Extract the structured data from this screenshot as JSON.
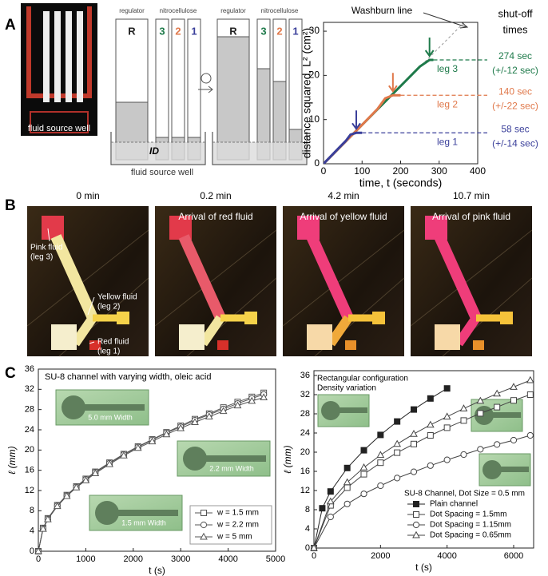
{
  "panel_labels": [
    "A",
    "B",
    "C"
  ],
  "panel_a": {
    "photo_label": "fluid source well",
    "schematic_1": {
      "regulator": "regulator",
      "nitrocellulose": "nitrocellulose",
      "legs": [
        "R",
        "3",
        "2",
        "1"
      ],
      "id": "ID",
      "well": "fluid source well"
    },
    "schematic_2": {
      "regulator": "regulator",
      "nitrocellulose": "nitrocellulose",
      "legs": [
        "R",
        "3",
        "2",
        "1"
      ]
    }
  },
  "panel_b": {
    "frames": [
      {
        "time": "0 min"
      },
      {
        "time": "0.2 min",
        "caption": "Arrival of red fluid"
      },
      {
        "time": "4.2 min",
        "caption": "Arrival of yellow fluid"
      },
      {
        "time": "10.7 min",
        "caption": "Arrival of pink fluid"
      }
    ],
    "labels": [
      {
        "lines": [
          "Pink fluid",
          "(leg 3)"
        ]
      },
      {
        "lines": [
          "Yellow fluid",
          "(leg 2)"
        ]
      },
      {
        "lines": [
          "Red fluid",
          "(leg 1)"
        ]
      }
    ]
  },
  "chart_data": [
    {
      "type": "line",
      "x_label": "time, t (seconds)",
      "y_label": "distance squared, L² (cm²)",
      "xlim": [
        0,
        400
      ],
      "xticks": [
        0,
        100,
        200,
        300,
        400
      ],
      "ylim": [
        0,
        32
      ],
      "yticks": [
        0,
        10,
        20,
        30
      ],
      "shutoff_title": [
        "shut-off",
        "times"
      ],
      "series": [
        {
          "name": "Washburn line",
          "color": "#9a9a9a",
          "dashed": true,
          "x": [
            0,
            365
          ],
          "values": [
            0,
            32
          ]
        },
        {
          "name": "leg 3",
          "color": "#1e7a4a",
          "x": [
            0,
            100,
            200,
            250,
            275,
            285
          ],
          "values": [
            0,
            8.8,
            17.6,
            22,
            23.5,
            23.5
          ],
          "shutoff_time": "274 sec",
          "shutoff_error": "(+/-12 sec)"
        },
        {
          "name": "leg 2",
          "color": "#e0784a",
          "x": [
            0,
            50,
            100,
            140,
            160,
            180,
            200
          ],
          "values": [
            0,
            4.4,
            8.8,
            12.4,
            14.8,
            15.5,
            15.5
          ],
          "shutoff_time": "140 sec",
          "shutoff_error": "(+/-22 sec)"
        },
        {
          "name": "leg 1",
          "color": "#3a3f9a",
          "x": [
            0,
            20,
            40,
            58,
            70,
            85,
            100
          ],
          "values": [
            0,
            1.8,
            3.6,
            5.2,
            6.6,
            7,
            7
          ],
          "shutoff_time": "58 sec",
          "shutoff_error": "(+/-14 sec)"
        }
      ]
    },
    {
      "type": "line",
      "title": "SU-8 channel with varying width, oleic acid",
      "x_label": "t (s)",
      "y_label": "ℓ (mm)",
      "xlim": [
        0,
        5000
      ],
      "xticks": [
        0,
        1000,
        2000,
        3000,
        4000,
        5000
      ],
      "ylim": [
        0,
        36
      ],
      "yticks": [
        0,
        4,
        8,
        12,
        16,
        20,
        24,
        28,
        32,
        36
      ],
      "legend": "lower right",
      "insets": [
        "5.0 mm Width",
        "2.2 mm Width",
        "1.5 mm Width"
      ],
      "series": [
        {
          "name": "w = 1.5 mm",
          "color": "#555555",
          "marker": "square",
          "filled": false,
          "x": [
            0,
            100,
            200,
            400,
            600,
            800,
            1000,
            1200,
            1500,
            1800,
            2100,
            2400,
            2700,
            3000,
            3300,
            3600,
            3900,
            4200,
            4500,
            4750
          ],
          "values": [
            0,
            4.6,
            6.5,
            9.1,
            11.1,
            12.8,
            14.3,
            15.7,
            17.5,
            19.2,
            20.7,
            22.1,
            23.5,
            24.8,
            26.1,
            27.2,
            28.4,
            29.5,
            30.5,
            31.3
          ]
        },
        {
          "name": "w = 2.2 mm",
          "color": "#555555",
          "marker": "circle",
          "filled": false,
          "x": [
            0,
            100,
            200,
            400,
            600,
            800,
            1000,
            1200,
            1500,
            1800,
            2100,
            2400,
            2700,
            3000,
            3300,
            3600,
            3900,
            4200,
            4500,
            4750
          ],
          "values": [
            0,
            4.5,
            6.4,
            9.0,
            11.0,
            12.7,
            14.2,
            15.6,
            17.4,
            19.1,
            20.6,
            22.0,
            23.4,
            24.6,
            25.9,
            27.0,
            28.1,
            29.2,
            30.2,
            31.0
          ]
        },
        {
          "name": "w = 5 mm",
          "color": "#555555",
          "marker": "triangle",
          "filled": false,
          "x": [
            0,
            100,
            200,
            400,
            600,
            800,
            1000,
            1200,
            1500,
            1800,
            2100,
            2400,
            2700,
            3000,
            3300,
            3600,
            3900,
            4200,
            4500,
            4750
          ],
          "values": [
            0,
            4.4,
            6.3,
            8.9,
            10.9,
            12.6,
            14.0,
            15.4,
            17.2,
            18.9,
            20.4,
            21.7,
            23.1,
            24.3,
            25.5,
            26.6,
            27.7,
            28.8,
            29.7,
            30.4
          ]
        }
      ]
    },
    {
      "type": "line",
      "x_label": "t (s)",
      "y_label": "ℓ (mm)",
      "xlim": [
        0,
        6600
      ],
      "xticks": [
        0,
        2000,
        4000,
        6000
      ],
      "ylim": [
        0,
        37
      ],
      "yticks": [
        0,
        4,
        8,
        12,
        16,
        20,
        24,
        28,
        32,
        36
      ],
      "legend": "lower right",
      "annotations": [
        "Rectangular configuration",
        "Density variation"
      ],
      "legend_title": "SU-8 Channel, Dot Size = 0.5 mm",
      "series": [
        {
          "name": "Plain channel",
          "color": "#222222",
          "marker": "square",
          "filled": true,
          "x": [
            0,
            250,
            500,
            1000,
            1500,
            2000,
            2500,
            3000,
            3500,
            4000
          ],
          "values": [
            0,
            8.3,
            11.8,
            16.7,
            20.4,
            23.6,
            26.4,
            28.9,
            31.2,
            33.3
          ]
        },
        {
          "name": "Dot Spacing = 1.5mm",
          "color": "#444444",
          "marker": "square",
          "filled": false,
          "x": [
            0,
            500,
            1000,
            1500,
            2000,
            2500,
            3000,
            3500,
            4000,
            4500,
            5000,
            5500,
            6000,
            6500
          ],
          "values": [
            0,
            8.9,
            12.6,
            15.4,
            17.8,
            19.9,
            21.7,
            23.5,
            25.1,
            26.6,
            28.1,
            29.4,
            30.8,
            32.0
          ]
        },
        {
          "name": "Dot Spacing = 1.15mm",
          "color": "#444444",
          "marker": "circle",
          "filled": false,
          "x": [
            0,
            500,
            1000,
            1500,
            2000,
            2500,
            3000,
            3500,
            4000,
            4500,
            5000,
            5500,
            6000,
            6500
          ],
          "values": [
            0,
            6.5,
            9.2,
            11.3,
            13.0,
            14.6,
            15.9,
            17.2,
            18.4,
            19.5,
            20.6,
            21.6,
            22.5,
            23.5
          ]
        },
        {
          "name": "Dot Spacing = 0.65mm",
          "color": "#444444",
          "marker": "triangle",
          "filled": false,
          "x": [
            0,
            500,
            1000,
            1500,
            2000,
            2500,
            3000,
            3500,
            4000,
            4500,
            5000,
            5500,
            6000,
            6500
          ],
          "values": [
            0,
            9.7,
            13.7,
            16.8,
            19.4,
            21.7,
            23.8,
            25.7,
            27.4,
            29.1,
            30.7,
            32.2,
            33.6,
            35.0
          ]
        }
      ]
    }
  ]
}
